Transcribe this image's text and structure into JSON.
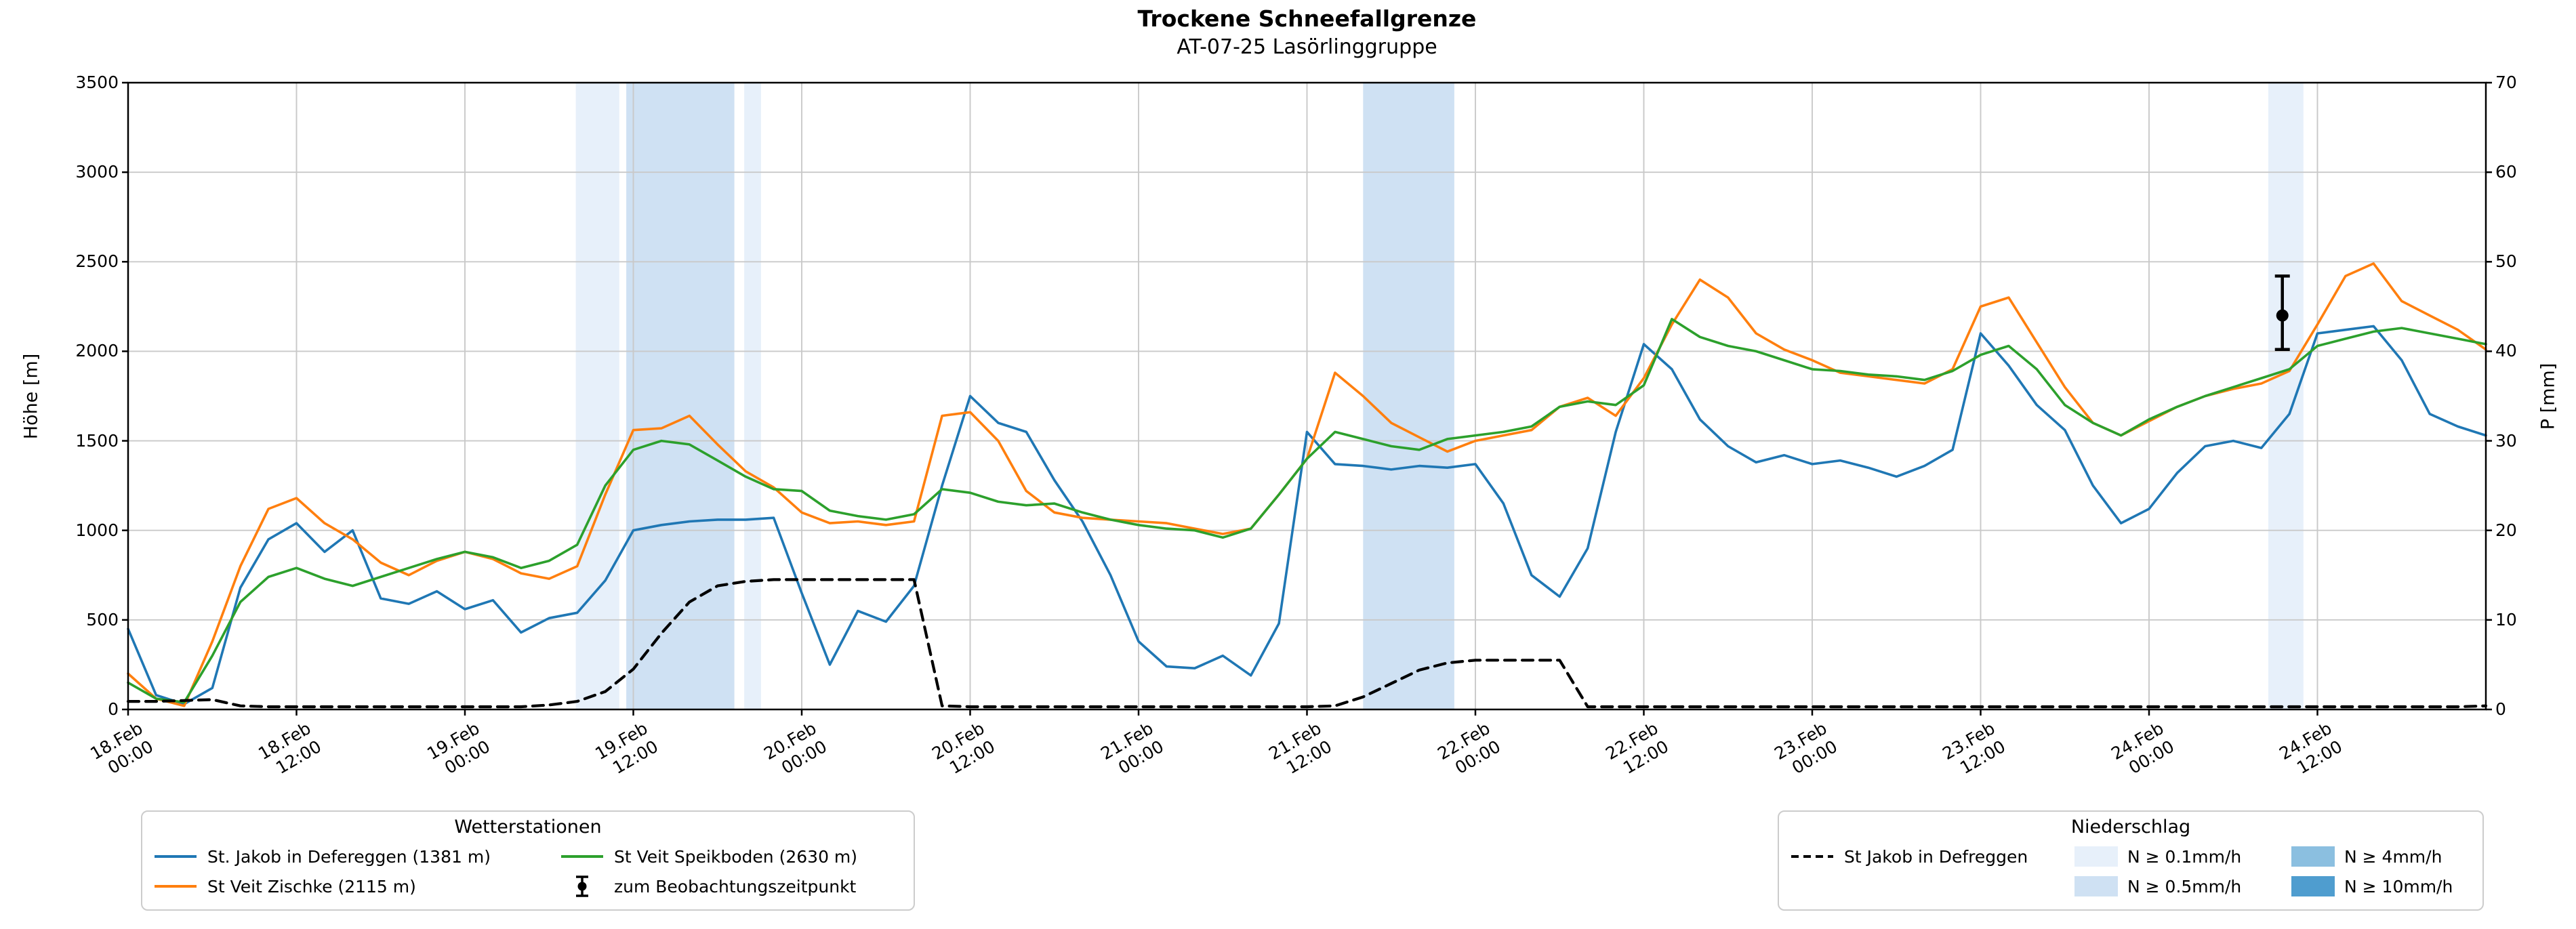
{
  "title": "Trockene Schneefallgrenze",
  "subtitle": "AT-07-25 Lasörlinggruppe",
  "axes": {
    "y_left": {
      "label": "Höhe [m]",
      "min": 0,
      "max": 3500,
      "ticks": [
        0,
        500,
        1000,
        1500,
        2000,
        2500,
        3000,
        3500
      ]
    },
    "y_right": {
      "label": "P [mm]",
      "min": 0,
      "max": 70,
      "ticks": [
        0,
        10,
        20,
        30,
        40,
        50,
        60,
        70
      ]
    },
    "x": {
      "range_hours": [
        0,
        168
      ],
      "tick_hours": [
        0,
        12,
        24,
        36,
        48,
        60,
        72,
        84,
        96,
        108,
        120,
        132,
        144,
        156
      ],
      "tick_labels": [
        [
          "18.Feb",
          "00:00"
        ],
        [
          "18.Feb",
          "12:00"
        ],
        [
          "19.Feb",
          "00:00"
        ],
        [
          "19.Feb",
          "12:00"
        ],
        [
          "20.Feb",
          "00:00"
        ],
        [
          "20.Feb",
          "12:00"
        ],
        [
          "21.Feb",
          "00:00"
        ],
        [
          "21.Feb",
          "12:00"
        ],
        [
          "22.Feb",
          "00:00"
        ],
        [
          "22.Feb",
          "12:00"
        ],
        [
          "23.Feb",
          "00:00"
        ],
        [
          "23.Feb",
          "12:00"
        ],
        [
          "24.Feb",
          "00:00"
        ],
        [
          "24.Feb",
          "12:00"
        ]
      ]
    }
  },
  "chart_data": {
    "type": "line",
    "x_unit": "hours since 18.Feb 00:00",
    "x_start": 0,
    "x_step": 2,
    "grid": true,
    "series": [
      {
        "name": "St. Jakob in Defereggen (1381 m)",
        "color": "#1f77b4",
        "axis": "left",
        "style": "solid",
        "values": [
          450,
          80,
          30,
          120,
          680,
          950,
          1040,
          880,
          1000,
          620,
          590,
          660,
          560,
          610,
          430,
          510,
          540,
          720,
          1000,
          1030,
          1050,
          1060,
          1060,
          1070,
          650,
          250,
          550,
          490,
          690,
          1250,
          1750,
          1600,
          1550,
          1280,
          1050,
          750,
          380,
          240,
          230,
          300,
          190,
          480,
          1550,
          1370,
          1360,
          1340,
          1360,
          1350,
          1370,
          1150,
          750,
          630,
          900,
          1550,
          2040,
          1900,
          1620,
          1470,
          1380,
          1420,
          1370,
          1390,
          1350,
          1300,
          1360,
          1450,
          2100,
          1920,
          1700,
          1560,
          1250,
          1040,
          1120,
          1320,
          1470,
          1500,
          1460,
          1650,
          2100,
          2120,
          2140,
          1950,
          1650,
          1580,
          1530
        ]
      },
      {
        "name": "St Veit Zischke (2115 m)",
        "color": "#ff7f0e",
        "axis": "left",
        "style": "solid",
        "values": [
          200,
          60,
          20,
          380,
          800,
          1120,
          1180,
          1040,
          950,
          820,
          750,
          830,
          880,
          840,
          760,
          730,
          800,
          1200,
          1560,
          1570,
          1640,
          1480,
          1330,
          1240,
          1100,
          1040,
          1050,
          1030,
          1050,
          1640,
          1660,
          1500,
          1220,
          1100,
          1070,
          1060,
          1050,
          1040,
          1010,
          980,
          1010,
          1200,
          1400,
          1880,
          1750,
          1600,
          1520,
          1440,
          1500,
          1530,
          1560,
          1690,
          1740,
          1640,
          1850,
          2150,
          2400,
          2300,
          2100,
          2010,
          1950,
          1880,
          1860,
          1840,
          1820,
          1900,
          2250,
          2300,
          2050,
          1800,
          1600,
          1530,
          1610,
          1690,
          1750,
          1790,
          1820,
          1890,
          2150,
          2420,
          2490,
          2280,
          2200,
          2120,
          2010
        ]
      },
      {
        "name": "St Veit Speikboden (2630 m)",
        "color": "#2ca02c",
        "axis": "left",
        "style": "solid",
        "values": [
          150,
          60,
          40,
          300,
          600,
          740,
          790,
          730,
          690,
          740,
          790,
          840,
          880,
          850,
          790,
          830,
          920,
          1250,
          1450,
          1500,
          1480,
          1390,
          1300,
          1230,
          1220,
          1110,
          1080,
          1060,
          1090,
          1230,
          1210,
          1160,
          1140,
          1150,
          1100,
          1060,
          1030,
          1010,
          1000,
          960,
          1010,
          1200,
          1400,
          1550,
          1510,
          1470,
          1450,
          1510,
          1530,
          1550,
          1580,
          1690,
          1720,
          1700,
          1810,
          2180,
          2080,
          2030,
          2000,
          1950,
          1900,
          1890,
          1870,
          1860,
          1840,
          1890,
          1980,
          2030,
          1900,
          1700,
          1600,
          1530,
          1620,
          1690,
          1750,
          1800,
          1850,
          1900,
          2030,
          2070,
          2110,
          2130,
          2100,
          2070,
          2040
        ]
      },
      {
        "name": "St Jakob in Defreggen",
        "color": "#000000",
        "axis": "right",
        "style": "dashed",
        "values": [
          0.9,
          0.9,
          1.0,
          1.1,
          0.4,
          0.3,
          0.3,
          0.3,
          0.3,
          0.3,
          0.3,
          0.3,
          0.3,
          0.3,
          0.3,
          0.5,
          0.9,
          2.0,
          4.5,
          8.5,
          12.0,
          13.8,
          14.3,
          14.5,
          14.5,
          14.5,
          14.5,
          14.5,
          14.5,
          0.4,
          0.3,
          0.3,
          0.3,
          0.3,
          0.3,
          0.3,
          0.3,
          0.3,
          0.3,
          0.3,
          0.3,
          0.3,
          0.3,
          0.4,
          1.4,
          2.9,
          4.4,
          5.2,
          5.5,
          5.5,
          5.5,
          5.5,
          0.3,
          0.3,
          0.3,
          0.3,
          0.3,
          0.3,
          0.3,
          0.3,
          0.3,
          0.3,
          0.3,
          0.3,
          0.3,
          0.3,
          0.3,
          0.3,
          0.3,
          0.3,
          0.3,
          0.3,
          0.3,
          0.3,
          0.3,
          0.3,
          0.3,
          0.3,
          0.3,
          0.3,
          0.3,
          0.3,
          0.3,
          0.3,
          0.4
        ]
      }
    ],
    "precip_bands": [
      {
        "from": 31.9,
        "to": 35.0,
        "level": "0.1"
      },
      {
        "from": 35.5,
        "to": 43.2,
        "level": "0.5"
      },
      {
        "from": 43.9,
        "to": 45.1,
        "level": "0.1"
      },
      {
        "from": 88.0,
        "to": 94.5,
        "level": "0.5"
      },
      {
        "from": 152.5,
        "to": 155.0,
        "level": "0.1"
      }
    ],
    "band_colors": {
      "0.1": "#e7f0fa",
      "0.5": "#cfe1f3",
      "4": "#8bbfe0",
      "10": "#4f9dcf"
    },
    "observation": {
      "hour": 153.5,
      "height_m": 2200,
      "err_low_m": 2010,
      "err_high_m": 2420
    }
  },
  "legends": {
    "stations": {
      "title": "Wetterstationen",
      "items": [
        {
          "type": "line",
          "color": "#1f77b4",
          "label": "St. Jakob in Defereggen (1381 m)"
        },
        {
          "type": "line",
          "color": "#ff7f0e",
          "label": "St Veit Zischke (2115 m)"
        },
        {
          "type": "line",
          "color": "#2ca02c",
          "label": "St Veit Speikboden (2630 m)"
        },
        {
          "type": "errorbar",
          "color": "#000000",
          "label": "zum Beobachtungszeitpunkt"
        }
      ],
      "columns": [
        [
          0,
          1
        ],
        [
          2,
          3
        ]
      ]
    },
    "precip": {
      "title": "Niederschlag",
      "items": [
        {
          "type": "dashed",
          "color": "#000000",
          "label": "St Jakob in Defreggen"
        },
        {
          "type": "patch",
          "color": "#e7f0fa",
          "label": "N ≥ 0.1mm/h"
        },
        {
          "type": "patch",
          "color": "#cfe1f3",
          "label": "N ≥ 0.5mm/h"
        },
        {
          "type": "patch",
          "color": "#8bbfe0",
          "label": "N ≥ 4mm/h"
        },
        {
          "type": "patch",
          "color": "#4f9dcf",
          "label": "N ≥ 10mm/h"
        }
      ],
      "columns": [
        [
          0
        ],
        [
          1,
          2
        ],
        [
          3,
          4
        ]
      ]
    }
  }
}
